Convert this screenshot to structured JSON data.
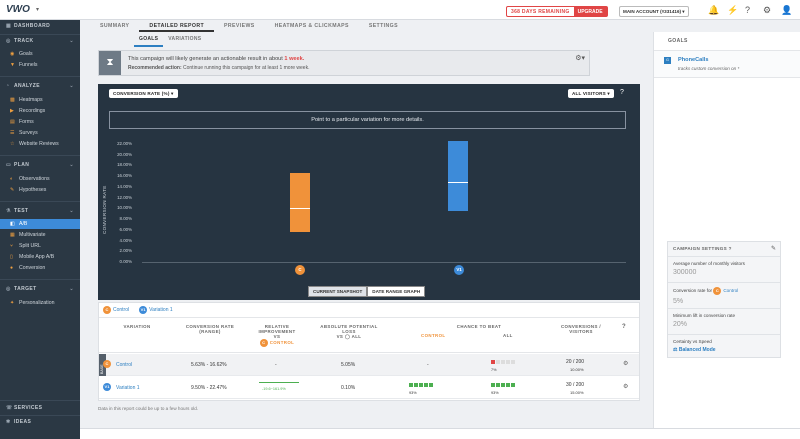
{
  "app": {
    "logo": "VWO",
    "caret": "▾"
  },
  "topbar": {
    "trial_days": "368 DAYS REMAINING",
    "upgrade": "UPGRADE",
    "account": "MAIN ACCOUNT (#331416)",
    "icons": [
      "bell-icon",
      "activity-icon",
      "help-icon",
      "gear-icon",
      "user-icon"
    ]
  },
  "tabs": [
    "SUMMARY",
    "DETAILED REPORT",
    "PREVIEWS",
    "HEATMAPS & CLICKMAPS",
    "SETTINGS"
  ],
  "subtabs": [
    "GOALS",
    "VARIATIONS"
  ],
  "sidebar": {
    "dashboard": "DASHBOARD",
    "track": "TRACK",
    "track_items": [
      "Goals",
      "Funnels"
    ],
    "analyze": "ANALYZE",
    "analyze_items": [
      "Heatmaps",
      "Recordings",
      "Forms",
      "Surveys",
      "Website Reviews"
    ],
    "plan": "PLAN",
    "plan_items": [
      "Observations",
      "Hypotheses"
    ],
    "test": "TEST",
    "test_items": [
      "A/B",
      "Multivariate",
      "Split URL",
      "Mobile App A/B",
      "Conversion"
    ],
    "target": "TARGET",
    "target_items": [
      "Personalization"
    ],
    "services": "SERVICES",
    "ideas": "IDEAS"
  },
  "banner": {
    "line1_pre": "This campaign will likely generate an actionable result in about ",
    "line1_bold": "1 week.",
    "line2_label": "Recommended action:",
    "line2_text": " Continue running this campaign for at least 1 more week."
  },
  "chart": {
    "metric_select": "CONVERSION RATE (%)",
    "visitors_select": "ALL VISITORS",
    "hint": "Point to a particular variation for more details.",
    "view_tabs": [
      "CURRENT SNAPSHOT",
      "DATE RANGE GRAPH"
    ],
    "markers": [
      "C",
      "V1"
    ]
  },
  "chart_data": {
    "type": "bar",
    "ylabel": "CONVERSION RATE",
    "ylim": [
      0,
      22
    ],
    "yticks": [
      "22.00%",
      "20.00%",
      "18.00%",
      "16.00%",
      "14.00%",
      "12.00%",
      "10.00%",
      "8.00%",
      "6.00%",
      "4.00%",
      "2.00%",
      "0.00%"
    ],
    "categories": [
      "Control",
      "Variation 1"
    ],
    "ranges": [
      [
        5.63,
        16.62
      ],
      [
        9.5,
        22.47
      ]
    ],
    "mid": [
      10.0,
      15.0
    ],
    "colors": [
      "#f0923a",
      "#3d8bd9"
    ]
  },
  "table": {
    "legend": [
      "Control",
      "Variation 1"
    ],
    "headers": {
      "variation": "VARIATION",
      "conv_rate": "CONVERSION RATE (RANGE)",
      "rel_improve": "RELATIVE IMPROVEMENT",
      "vs": "VS",
      "vs_control": "CONTROL",
      "abs_loss": "ABSOLUTE POTENTIAL LOSS",
      "vs_all": "VS",
      "all": "ALL",
      "chance": "CHANCE TO BEAT",
      "chance_control": "CONTROL",
      "chance_all": "ALL",
      "conversions": "CONVERSIONS / VISITORS"
    },
    "base_tag": "BASE",
    "rows": [
      {
        "name": "Control",
        "badge": "C",
        "range": "5.63% - 16.62%",
        "improve": "-",
        "loss": "5.05%",
        "chance_control": "-",
        "chance_all_pct": "7%",
        "conv": "20 / 200",
        "conv_pct": "10.00%"
      },
      {
        "name": "Variation 1",
        "badge": "V1",
        "range": "9.50% - 22.47%",
        "improve_range": "-19.6~161.9%",
        "loss": "0.10%",
        "chance_control_pct": "93%",
        "chance_all_pct": "93%",
        "conv": "30 / 200",
        "conv_pct": "15.00%"
      }
    ],
    "footnote": "Data in this report could be up to a few hours old."
  },
  "right_panel": {
    "title": "GOALS",
    "goal_name": "PhoneCalls",
    "goal_desc": "tracks custom conversion on *",
    "settings": {
      "title": "CAMPAIGN SETTINGS",
      "monthly_label": "Average number of monthly visitors",
      "monthly_value": "300000",
      "conv_label_pre": "Conversion rate for",
      "conv_label_control": "Control",
      "conv_value": "5%",
      "lift_label": "Minimum lift in conversion rate",
      "lift_value": "20%",
      "certainty_label": "Certainty vs Speed",
      "certainty_value": "Balanced Mode"
    }
  },
  "colors": {
    "accent": "#3d8bd9",
    "control": "#f0923a",
    "danger": "#e04545",
    "success": "#4caf50"
  }
}
